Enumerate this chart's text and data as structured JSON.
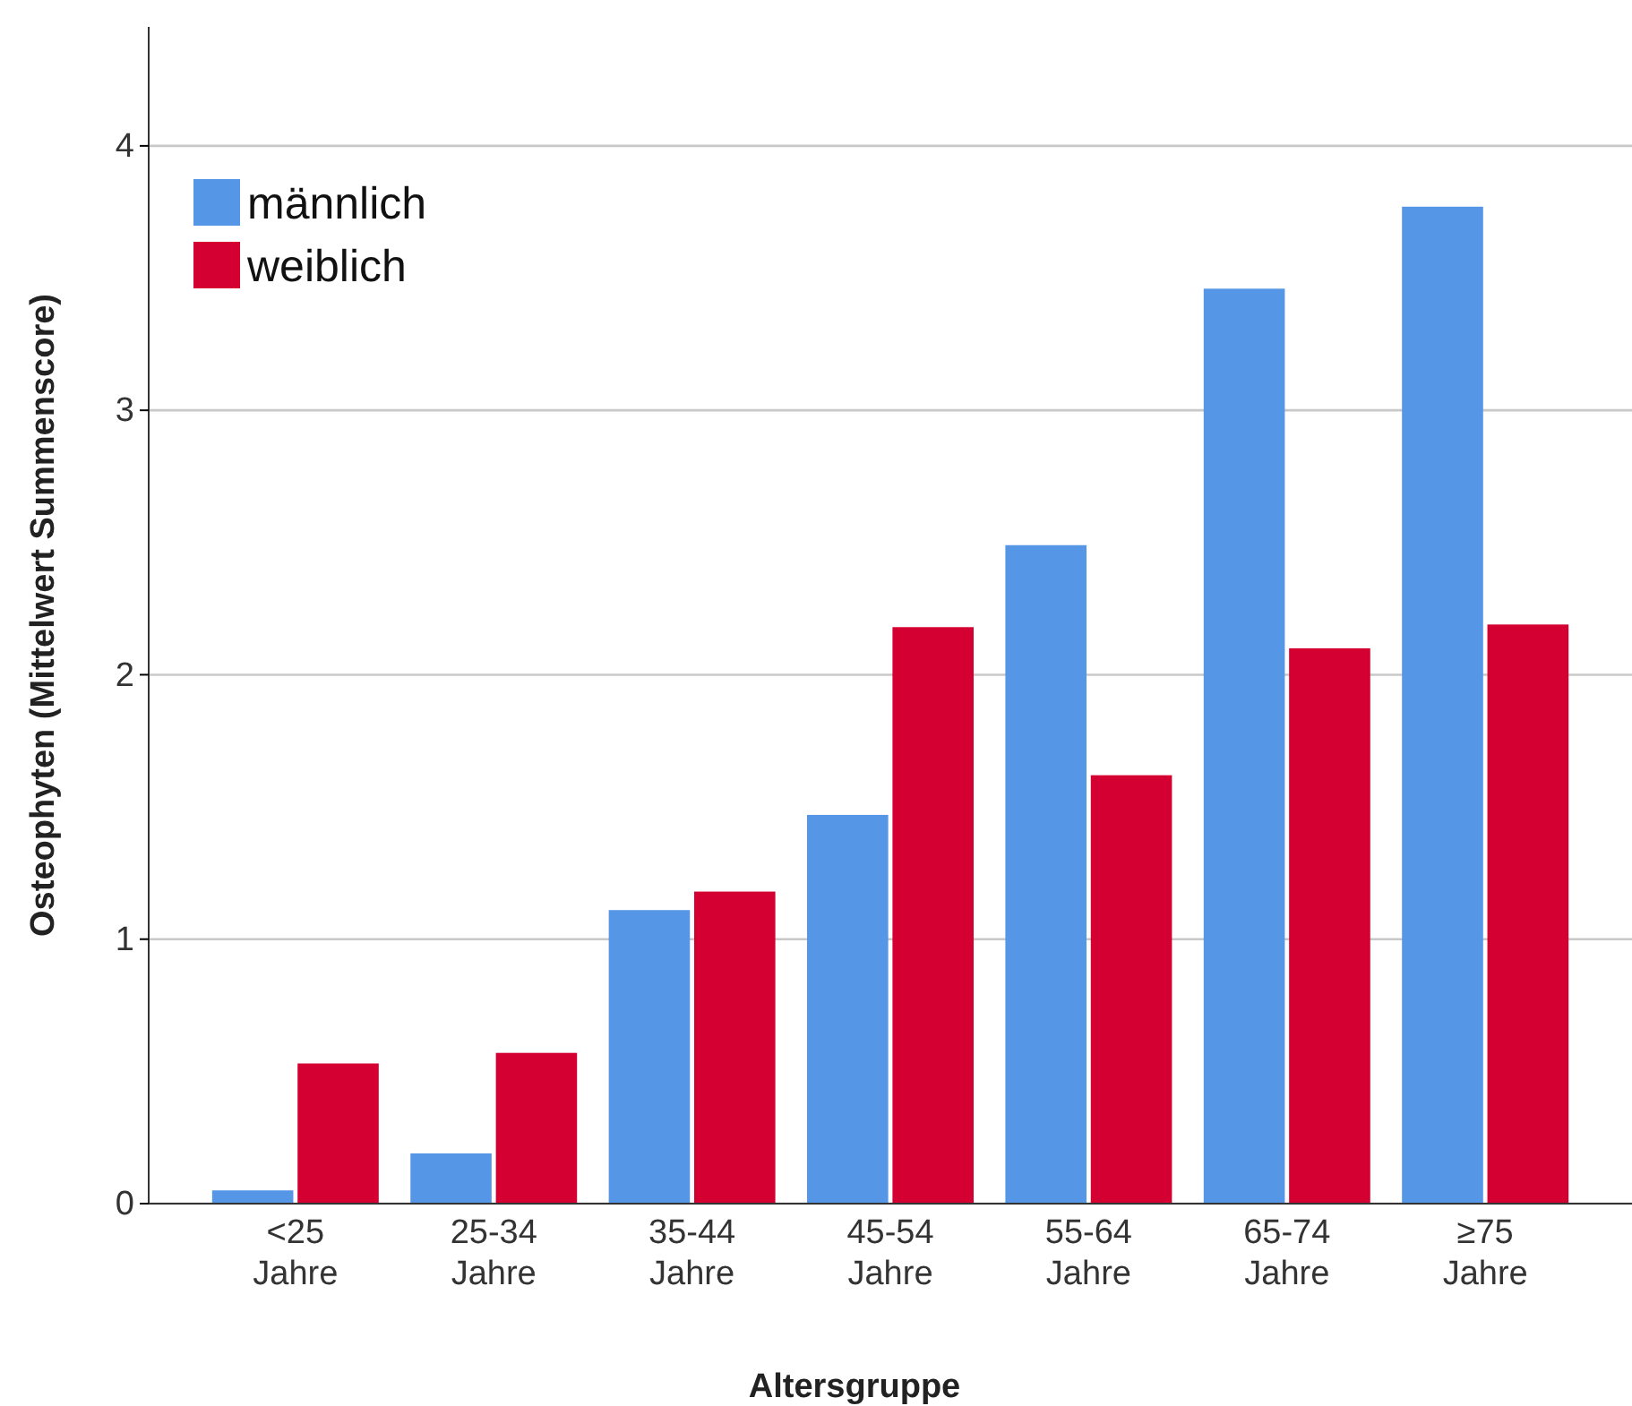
{
  "chart_data": {
    "type": "bar",
    "xlabel": "Altersgruppe",
    "ylabel": "Osteophyten (Mittelwert Summenscore)",
    "categories": [
      "<25 Jahre",
      "25-34 Jahre",
      "35-44 Jahre",
      "45-54 Jahre",
      "55-64 Jahre",
      "65-74 Jahre",
      "≥75 Jahre"
    ],
    "series": [
      {
        "name": "männlich",
        "color": "#5596e6",
        "values": [
          0.05,
          0.19,
          1.11,
          1.47,
          2.49,
          3.46,
          3.77
        ]
      },
      {
        "name": "weiblich",
        "color": "#d50032",
        "values": [
          0.53,
          0.57,
          1.18,
          2.18,
          1.62,
          2.1,
          2.19
        ]
      }
    ],
    "ylim": [
      0,
      4.45
    ],
    "yticks": [
      0,
      1,
      2,
      3,
      4
    ],
    "grid": "y",
    "legend": "top left"
  }
}
